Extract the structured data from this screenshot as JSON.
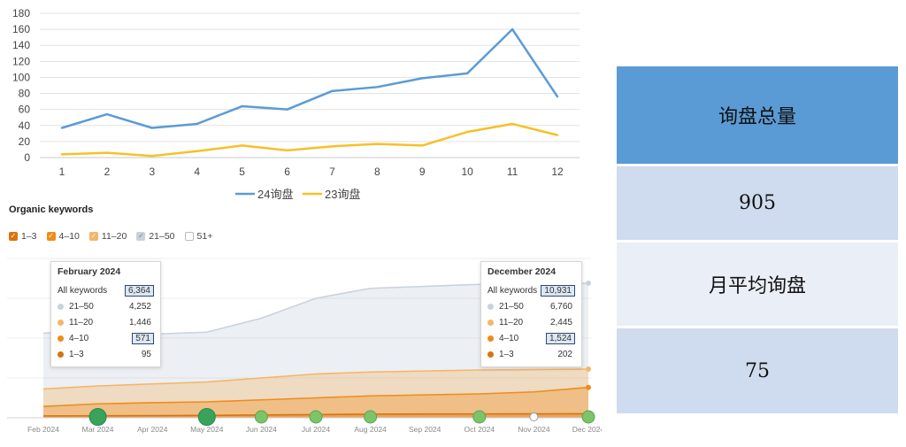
{
  "chart_data": [
    {
      "type": "line",
      "x": [
        1,
        2,
        3,
        4,
        5,
        6,
        7,
        8,
        9,
        10,
        11,
        12
      ],
      "ylim": [
        0,
        180
      ],
      "yticks": [
        0,
        20,
        40,
        60,
        80,
        100,
        120,
        140,
        160,
        180
      ],
      "grid": true,
      "legend_position": "bottom",
      "series": [
        {
          "name": "24询盘",
          "color": "#5b9bd5",
          "values": [
            37,
            54,
            37,
            42,
            64,
            60,
            83,
            88,
            99,
            105,
            160,
            76
          ]
        },
        {
          "name": "23询盘",
          "color": "#f7c026",
          "values": [
            4,
            6,
            2,
            8,
            15,
            9,
            14,
            17,
            15,
            32,
            42,
            28
          ]
        }
      ]
    },
    {
      "type": "area",
      "title": "Organic keywords",
      "categories": [
        "Feb 2024",
        "Mar 2024",
        "Apr 2024",
        "May 2024",
        "Jun 2024",
        "Jul 2024",
        "Aug 2024",
        "Sep 2024",
        "Oct 2024",
        "Nov 2024",
        "Dec 2024"
      ],
      "legend": [
        {
          "label": "1–3",
          "checked": true,
          "color": "#d9730d"
        },
        {
          "label": "4–10",
          "checked": true,
          "color": "#f08c1a"
        },
        {
          "label": "11–20",
          "checked": true,
          "color": "#f6b567"
        },
        {
          "label": "21–50",
          "checked": true,
          "color": "#c9d2dc"
        },
        {
          "label": "51+",
          "checked": false,
          "color": "#ffffff"
        }
      ],
      "series": [
        {
          "name": "1–3",
          "color": "#d9730d",
          "values": [
            95,
            100,
            110,
            120,
            140,
            160,
            180,
            190,
            195,
            198,
            202
          ]
        },
        {
          "name": "4–10",
          "color": "#f08c1a",
          "values": [
            571,
            700,
            760,
            800,
            900,
            1000,
            1100,
            1150,
            1200,
            1300,
            1524
          ]
        },
        {
          "name": "11–20",
          "color": "#f6b567",
          "values": [
            1446,
            1600,
            1700,
            1800,
            2000,
            2200,
            2300,
            2350,
            2400,
            2420,
            2445
          ]
        },
        {
          "name": "21–50",
          "color": "#c9d2dc",
          "values": [
            4252,
            4300,
            4200,
            4300,
            5000,
            6000,
            6500,
            6600,
            6700,
            6700,
            6760
          ]
        }
      ],
      "markers": [
        {
          "month": "Mar 2024",
          "size": "large"
        },
        {
          "month": "May 2024",
          "size": "large"
        },
        {
          "month": "Jun 2024",
          "size": "small"
        },
        {
          "month": "Jul 2024",
          "size": "small"
        },
        {
          "month": "Aug 2024",
          "size": "small"
        },
        {
          "month": "Oct 2024",
          "size": "small"
        },
        {
          "month": "Nov 2024",
          "size": "hollow"
        },
        {
          "month": "Dec 2024",
          "size": "small"
        }
      ]
    }
  ],
  "tooltips": [
    {
      "title": "February 2024",
      "all_label": "All keywords",
      "all_value": "6,364",
      "rows": [
        {
          "label": "21–50",
          "value": "4,252",
          "color": "#c9d2dc",
          "highlight": false
        },
        {
          "label": "11–20",
          "value": "1,446",
          "color": "#f6b567",
          "highlight": false
        },
        {
          "label": "4–10",
          "value": "571",
          "color": "#f08c1a",
          "highlight": true
        },
        {
          "label": "1–3",
          "value": "95",
          "color": "#d9730d",
          "highlight": false
        }
      ]
    },
    {
      "title": "December 2024",
      "all_label": "All keywords",
      "all_value": "10,931",
      "rows": [
        {
          "label": "21–50",
          "value": "6,760",
          "color": "#c9d2dc",
          "highlight": false
        },
        {
          "label": "11–20",
          "value": "2,445",
          "color": "#f6b567",
          "highlight": false
        },
        {
          "label": "4–10",
          "value": "1,524",
          "color": "#f08c1a",
          "highlight": true
        },
        {
          "label": "1–3",
          "value": "202",
          "color": "#d9730d",
          "highlight": false
        }
      ]
    }
  ],
  "summary": {
    "total_label": "询盘总量",
    "total_value": "905",
    "avg_label": "月平均询盘",
    "avg_value": "75",
    "colors": {
      "header": "#5b9bd5",
      "band_dark": "#cfdbee",
      "band_light": "#e9eef7"
    }
  }
}
